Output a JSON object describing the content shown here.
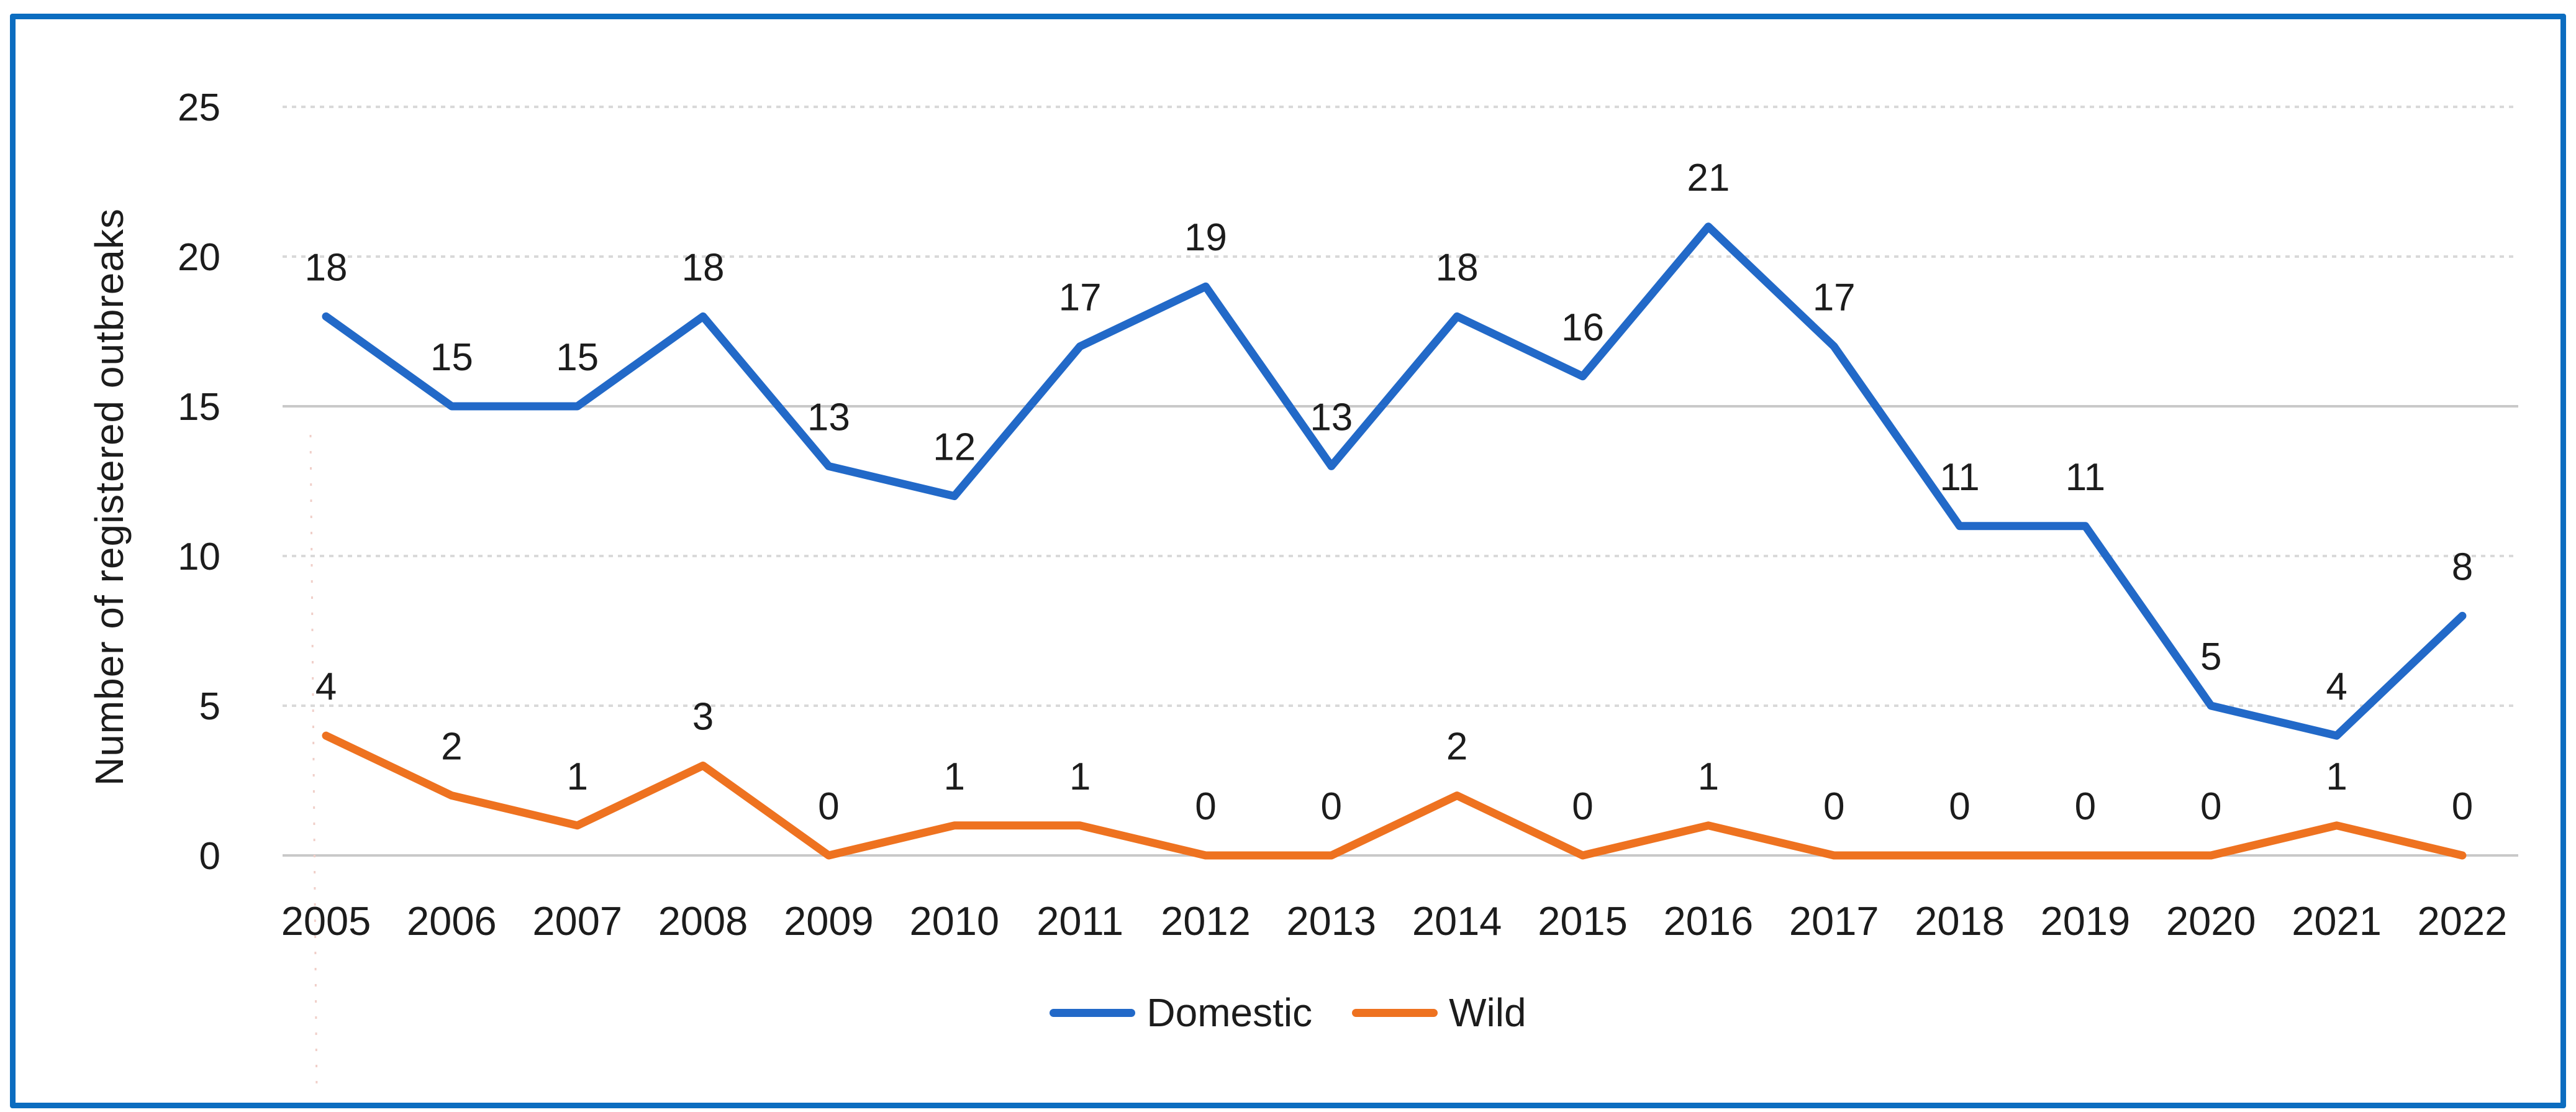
{
  "frame": {
    "border_color": "#0C6DC0"
  },
  "chart_data": {
    "type": "line",
    "title": "",
    "xlabel": "",
    "ylabel": "Number of registered outbreaks",
    "categories": [
      "2005",
      "2006",
      "2007",
      "2008",
      "2009",
      "2010",
      "2011",
      "2012",
      "2013",
      "2014",
      "2015",
      "2016",
      "2017",
      "2018",
      "2019",
      "2020",
      "2021",
      "2022"
    ],
    "series": [
      {
        "name": "Domestic",
        "color": "#2269C8",
        "values": [
          18,
          15,
          15,
          18,
          13,
          12,
          17,
          19,
          13,
          18,
          16,
          21,
          17,
          11,
          11,
          5,
          4,
          8
        ]
      },
      {
        "name": "Wild",
        "color": "#EE7220",
        "values": [
          4,
          2,
          1,
          3,
          0,
          1,
          1,
          0,
          0,
          2,
          0,
          1,
          0,
          0,
          0,
          0,
          1,
          0
        ]
      }
    ],
    "ylim": [
      0,
      25
    ],
    "yticks": [
      0,
      5,
      10,
      15,
      20,
      25
    ],
    "grid": "horizontal",
    "solid_gridlines": [
      0,
      15
    ],
    "data_labels": true,
    "legend_position": "bottom"
  }
}
